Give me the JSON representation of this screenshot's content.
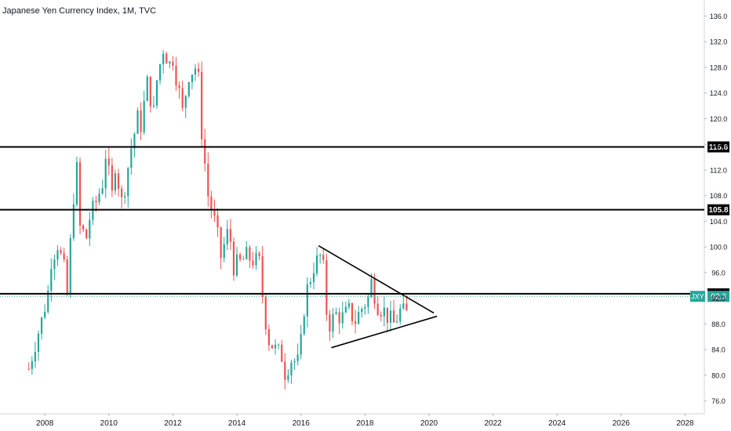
{
  "title": "Japanese Yen Currency Index, 1M, TVC",
  "colors": {
    "up": "#26a69a",
    "down": "#ef5350",
    "grid": "#f0f3fa",
    "axis_text": "#131722",
    "line": "#000000",
    "current": "#26a69a"
  },
  "chart_data": {
    "type": "candlestick",
    "title": "Japanese Yen Currency Index, 1M, TVC",
    "xlim": [
      2006.6,
      2028.6
    ],
    "ylim": [
      74.0,
      138.5
    ],
    "x_ticks": [
      "2008",
      "2010",
      "2012",
      "2014",
      "2016",
      "2018",
      "2020",
      "2022",
      "2024",
      "2026",
      "2028"
    ],
    "y_ticks": [
      "76.0",
      "80.0",
      "84.0",
      "88.0",
      "92.0",
      "96.0",
      "100.0",
      "104.0",
      "108.0",
      "112.0",
      "116.0",
      "120.0",
      "124.0",
      "128.0",
      "132.0",
      "136.0"
    ],
    "grid": false,
    "path_points": [
      [
        2007.5,
        81.0
      ],
      [
        2007.7,
        85.0
      ],
      [
        2007.9,
        88.5
      ],
      [
        2008.1,
        93.0
      ],
      [
        2008.2,
        98.0
      ],
      [
        2008.4,
        100.5
      ],
      [
        2008.6,
        96.5
      ],
      [
        2008.7,
        92.5
      ],
      [
        2008.8,
        100.5
      ],
      [
        2008.9,
        108.0
      ],
      [
        2009.0,
        112.0
      ],
      [
        2009.1,
        103.0
      ],
      [
        2009.3,
        101.5
      ],
      [
        2009.4,
        104.5
      ],
      [
        2009.6,
        107.0
      ],
      [
        2009.8,
        110.0
      ],
      [
        2009.9,
        114.5
      ],
      [
        2010.1,
        108.0
      ],
      [
        2010.2,
        113.0
      ],
      [
        2010.4,
        107.0
      ],
      [
        2010.5,
        109.5
      ],
      [
        2010.7,
        115.5
      ],
      [
        2010.9,
        120.0
      ],
      [
        2011.0,
        119.0
      ],
      [
        2011.2,
        125.5
      ],
      [
        2011.4,
        121.0
      ],
      [
        2011.5,
        126.0
      ],
      [
        2011.7,
        131.0
      ],
      [
        2011.9,
        128.5
      ],
      [
        2012.0,
        129.5
      ],
      [
        2012.2,
        124.0
      ],
      [
        2012.3,
        121.0
      ],
      [
        2012.5,
        127.0
      ],
      [
        2012.7,
        128.0
      ],
      [
        2012.8,
        126.0
      ],
      [
        2012.9,
        118.0
      ],
      [
        2013.0,
        113.0
      ],
      [
        2013.1,
        108.0
      ],
      [
        2013.3,
        104.0
      ],
      [
        2013.4,
        101.5
      ],
      [
        2013.5,
        98.5
      ],
      [
        2013.7,
        102.0
      ],
      [
        2013.8,
        101.0
      ],
      [
        2013.9,
        97.0
      ],
      [
        2014.1,
        97.5
      ],
      [
        2014.3,
        98.5
      ],
      [
        2014.5,
        98.0
      ],
      [
        2014.7,
        97.5
      ],
      [
        2014.8,
        92.5
      ],
      [
        2014.9,
        88.5
      ],
      [
        2015.0,
        85.5
      ],
      [
        2015.2,
        84.0
      ],
      [
        2015.4,
        83.0
      ],
      [
        2015.5,
        80.5
      ],
      [
        2015.7,
        82.5
      ],
      [
        2015.9,
        82.0
      ],
      [
        2016.0,
        85.0
      ],
      [
        2016.1,
        90.5
      ],
      [
        2016.2,
        93.5
      ],
      [
        2016.4,
        97.0
      ],
      [
        2016.6,
        98.5
      ],
      [
        2016.7,
        96.5
      ],
      [
        2016.8,
        90.0
      ],
      [
        2016.9,
        88.0
      ],
      [
        2017.1,
        89.5
      ],
      [
        2017.3,
        89.0
      ],
      [
        2017.5,
        90.0
      ],
      [
        2017.7,
        88.5
      ],
      [
        2017.9,
        90.5
      ],
      [
        2018.1,
        92.0
      ],
      [
        2018.2,
        94.5
      ],
      [
        2018.4,
        91.0
      ],
      [
        2018.6,
        90.0
      ],
      [
        2018.8,
        88.5
      ],
      [
        2018.9,
        88.0
      ],
      [
        2019.1,
        90.0
      ],
      [
        2019.3,
        89.5
      ],
      [
        2019.4,
        91.5
      ]
    ],
    "trend_lines": [
      {
        "name": "triangle-upper",
        "x": [
          2016.55,
          2020.15
        ],
        "y": [
          100.2,
          89.7
        ]
      },
      {
        "name": "triangle-lower",
        "x": [
          2016.95,
          2020.25
        ],
        "y": [
          84.3,
          89.2
        ]
      }
    ],
    "horizontal_levels": [
      {
        "name": "level-115-6",
        "value": 115.6,
        "label": "115.6"
      },
      {
        "name": "level-105-8",
        "value": 105.8,
        "label": "105.8"
      },
      {
        "name": "level-92-7",
        "value": 92.7,
        "label": "92.7"
      }
    ],
    "current_price": {
      "symbol": "JXY",
      "value": 92.3,
      "label": "92.3"
    }
  }
}
